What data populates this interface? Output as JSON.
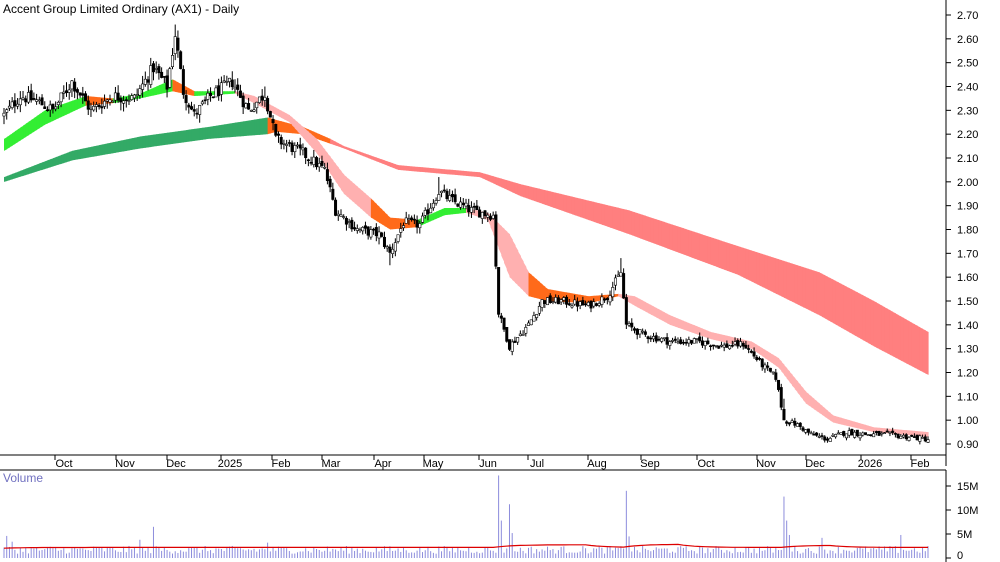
{
  "title": "Accent Group Limited Ordinary (AX1) - Daily",
  "volume_panel": {
    "label": "Volume"
  },
  "colors": {
    "short_band_up": "#33ee33",
    "short_band_down_dark": "#ff6a1a",
    "short_band_down_light": "#ffb0b0",
    "long_band_up": "#33aa66",
    "long_band_down": "#ff7f7f",
    "candle": "#000000",
    "volume_bar": "#8c8cdc",
    "volume_ma": "#dd0000",
    "axis_line": "#000000",
    "grid_tick": "#000000"
  },
  "chart_data": [
    {
      "type": "candlestick",
      "title": "Accent Group Limited Ordinary (AX1) - Daily",
      "x_tick_labels": [
        "Oct",
        "Nov",
        "Dec",
        "2025",
        "Feb",
        "Mar",
        "Apr",
        "May",
        "Jun",
        "Jul",
        "Aug",
        "Sep",
        "Oct",
        "Nov",
        "Dec",
        "2026",
        "Feb"
      ],
      "y_tick_labels": [
        "2.70",
        "2.60",
        "2.50",
        "2.40",
        "2.30",
        "2.20",
        "2.10",
        "2.00",
        "1.90",
        "1.80",
        "1.70",
        "1.60",
        "1.50",
        "1.40",
        "1.30",
        "1.20",
        "1.10",
        "1.00",
        "0.90"
      ],
      "ylim": [
        0.85,
        2.72
      ],
      "price_anchors": [
        {
          "d": 0,
          "p": 2.28
        },
        {
          "d": 6,
          "p": 2.36
        },
        {
          "d": 12,
          "p": 2.34
        },
        {
          "d": 18,
          "p": 2.3
        },
        {
          "d": 25,
          "p": 2.42
        },
        {
          "d": 32,
          "p": 2.3
        },
        {
          "d": 40,
          "p": 2.36
        },
        {
          "d": 48,
          "p": 2.35
        },
        {
          "d": 55,
          "p": 2.48
        },
        {
          "d": 60,
          "p": 2.4
        },
        {
          "d": 63,
          "p": 2.62
        },
        {
          "d": 66,
          "p": 2.38
        },
        {
          "d": 70,
          "p": 2.28
        },
        {
          "d": 76,
          "p": 2.36
        },
        {
          "d": 84,
          "p": 2.42
        },
        {
          "d": 90,
          "p": 2.3
        },
        {
          "d": 96,
          "p": 2.37
        },
        {
          "d": 100,
          "p": 2.18
        },
        {
          "d": 110,
          "p": 2.12
        },
        {
          "d": 118,
          "p": 2.05
        },
        {
          "d": 122,
          "p": 1.88
        },
        {
          "d": 130,
          "p": 1.8
        },
        {
          "d": 138,
          "p": 1.78
        },
        {
          "d": 142,
          "p": 1.7
        },
        {
          "d": 147,
          "p": 1.83
        },
        {
          "d": 153,
          "p": 1.82
        },
        {
          "d": 160,
          "p": 1.96
        },
        {
          "d": 165,
          "p": 1.92
        },
        {
          "d": 172,
          "p": 1.88
        },
        {
          "d": 180,
          "p": 1.86
        },
        {
          "d": 182,
          "p": 1.45
        },
        {
          "d": 186,
          "p": 1.31
        },
        {
          "d": 193,
          "p": 1.4
        },
        {
          "d": 198,
          "p": 1.5
        },
        {
          "d": 205,
          "p": 1.5
        },
        {
          "d": 215,
          "p": 1.48
        },
        {
          "d": 222,
          "p": 1.52
        },
        {
          "d": 227,
          "p": 1.62
        },
        {
          "d": 229,
          "p": 1.4
        },
        {
          "d": 235,
          "p": 1.36
        },
        {
          "d": 245,
          "p": 1.33
        },
        {
          "d": 255,
          "p": 1.33
        },
        {
          "d": 265,
          "p": 1.31
        },
        {
          "d": 272,
          "p": 1.32
        },
        {
          "d": 280,
          "p": 1.22
        },
        {
          "d": 284,
          "p": 1.18
        },
        {
          "d": 287,
          "p": 1.0
        },
        {
          "d": 292,
          "p": 0.98
        },
        {
          "d": 297,
          "p": 0.94
        },
        {
          "d": 303,
          "p": 0.92
        },
        {
          "d": 310,
          "p": 0.95
        },
        {
          "d": 318,
          "p": 0.94
        },
        {
          "d": 325,
          "p": 0.94
        },
        {
          "d": 333,
          "p": 0.93
        },
        {
          "d": 340,
          "p": 0.92
        }
      ],
      "spike_days": [
        {
          "d": 54,
          "high": 2.52
        },
        {
          "d": 63,
          "high": 2.66
        },
        {
          "d": 96,
          "high": 2.4
        },
        {
          "d": 160,
          "high": 2.02
        },
        {
          "d": 142,
          "low": 1.65
        },
        {
          "d": 182,
          "high": 1.56
        },
        {
          "d": 227,
          "high": 1.68
        },
        {
          "d": 287,
          "high": 1.09
        }
      ],
      "short_band": [
        {
          "d": 0,
          "a": 2.13,
          "b": 2.18,
          "c": "up"
        },
        {
          "d": 15,
          "a": 2.24,
          "b": 2.3,
          "c": "up"
        },
        {
          "d": 30,
          "a": 2.32,
          "b": 2.36,
          "c": "up"
        },
        {
          "d": 40,
          "a": 2.33,
          "b": 2.35,
          "c": "dark"
        },
        {
          "d": 50,
          "a": 2.35,
          "b": 2.37,
          "c": "up"
        },
        {
          "d": 62,
          "a": 2.38,
          "b": 2.43,
          "c": "up"
        },
        {
          "d": 70,
          "a": 2.36,
          "b": 2.38,
          "c": "dark"
        },
        {
          "d": 85,
          "a": 2.37,
          "b": 2.38,
          "c": "up"
        },
        {
          "d": 92,
          "a": 2.33,
          "b": 2.36,
          "c": "light"
        },
        {
          "d": 105,
          "a": 2.25,
          "b": 2.28,
          "c": "light"
        },
        {
          "d": 115,
          "a": 2.12,
          "b": 2.18,
          "c": "light"
        },
        {
          "d": 125,
          "a": 1.95,
          "b": 2.03,
          "c": "light"
        },
        {
          "d": 135,
          "a": 1.85,
          "b": 1.93,
          "c": "light"
        },
        {
          "d": 142,
          "a": 1.8,
          "b": 1.85,
          "c": "dark"
        },
        {
          "d": 152,
          "a": 1.81,
          "b": 1.84,
          "c": "dark"
        },
        {
          "d": 162,
          "a": 1.86,
          "b": 1.89,
          "c": "up"
        },
        {
          "d": 170,
          "a": 1.87,
          "b": 1.89,
          "c": "up"
        },
        {
          "d": 178,
          "a": 1.84,
          "b": 1.87,
          "c": "light"
        },
        {
          "d": 186,
          "a": 1.6,
          "b": 1.78,
          "c": "light"
        },
        {
          "d": 193,
          "a": 1.52,
          "b": 1.62,
          "c": "light"
        },
        {
          "d": 200,
          "a": 1.5,
          "b": 1.55,
          "c": "dark"
        },
        {
          "d": 215,
          "a": 1.49,
          "b": 1.52,
          "c": "dark"
        },
        {
          "d": 226,
          "a": 1.52,
          "b": 1.53,
          "c": "dark"
        },
        {
          "d": 232,
          "a": 1.48,
          "b": 1.52,
          "c": "light"
        },
        {
          "d": 245,
          "a": 1.4,
          "b": 1.44,
          "c": "light"
        },
        {
          "d": 260,
          "a": 1.34,
          "b": 1.37,
          "c": "light"
        },
        {
          "d": 275,
          "a": 1.3,
          "b": 1.33,
          "c": "light"
        },
        {
          "d": 285,
          "a": 1.22,
          "b": 1.26,
          "c": "light"
        },
        {
          "d": 295,
          "a": 1.07,
          "b": 1.12,
          "c": "light"
        },
        {
          "d": 305,
          "a": 0.99,
          "b": 1.02,
          "c": "light"
        },
        {
          "d": 320,
          "a": 0.95,
          "b": 0.97,
          "c": "light"
        },
        {
          "d": 340,
          "a": 0.93,
          "b": 0.95,
          "c": "light"
        }
      ],
      "long_band": [
        {
          "d": 0,
          "a": 2.0,
          "b": 2.02,
          "c": "up"
        },
        {
          "d": 25,
          "a": 2.09,
          "b": 2.13,
          "c": "up"
        },
        {
          "d": 50,
          "a": 2.14,
          "b": 2.19,
          "c": "up"
        },
        {
          "d": 75,
          "a": 2.18,
          "b": 2.23,
          "c": "up"
        },
        {
          "d": 97,
          "a": 2.2,
          "b": 2.27,
          "c": "up"
        },
        {
          "d": 100,
          "a": 2.21,
          "b": 2.26,
          "c": "dark"
        },
        {
          "d": 110,
          "a": 2.2,
          "b": 2.23,
          "c": "dark"
        },
        {
          "d": 120,
          "a": 2.16,
          "b": 2.18,
          "c": "dark"
        },
        {
          "d": 125,
          "a": 2.14,
          "b": 2.15,
          "c": "down"
        },
        {
          "d": 145,
          "a": 2.05,
          "b": 2.07,
          "c": "down"
        },
        {
          "d": 175,
          "a": 2.02,
          "b": 2.04,
          "c": "down"
        },
        {
          "d": 190,
          "a": 1.94,
          "b": 1.99,
          "c": "down"
        },
        {
          "d": 230,
          "a": 1.78,
          "b": 1.88,
          "c": "down"
        },
        {
          "d": 270,
          "a": 1.61,
          "b": 1.73,
          "c": "down"
        },
        {
          "d": 300,
          "a": 1.44,
          "b": 1.62,
          "c": "down"
        },
        {
          "d": 320,
          "a": 1.31,
          "b": 1.5,
          "c": "down"
        },
        {
          "d": 340,
          "a": 1.19,
          "b": 1.37,
          "c": "down"
        }
      ]
    },
    {
      "type": "bar",
      "title": "Volume",
      "y_tick_labels": [
        "15M",
        "10M",
        "5M",
        "0"
      ],
      "ylim": [
        0,
        17500000
      ],
      "base_volume": 1800000,
      "volume_ma": 2200000,
      "volume_spikes": [
        {
          "d": 1,
          "v": 4600000
        },
        {
          "d": 3,
          "v": 3400000
        },
        {
          "d": 50,
          "v": 3800000
        },
        {
          "d": 55,
          "v": 6500000
        },
        {
          "d": 97,
          "v": 3200000
        },
        {
          "d": 182,
          "v": 17200000
        },
        {
          "d": 183,
          "v": 7800000
        },
        {
          "d": 186,
          "v": 11200000
        },
        {
          "d": 187,
          "v": 5200000
        },
        {
          "d": 229,
          "v": 14000000
        },
        {
          "d": 230,
          "v": 4500000
        },
        {
          "d": 287,
          "v": 12800000
        },
        {
          "d": 288,
          "v": 7800000
        },
        {
          "d": 289,
          "v": 4800000
        },
        {
          "d": 301,
          "v": 4200000
        },
        {
          "d": 330,
          "v": 4800000
        }
      ]
    }
  ]
}
